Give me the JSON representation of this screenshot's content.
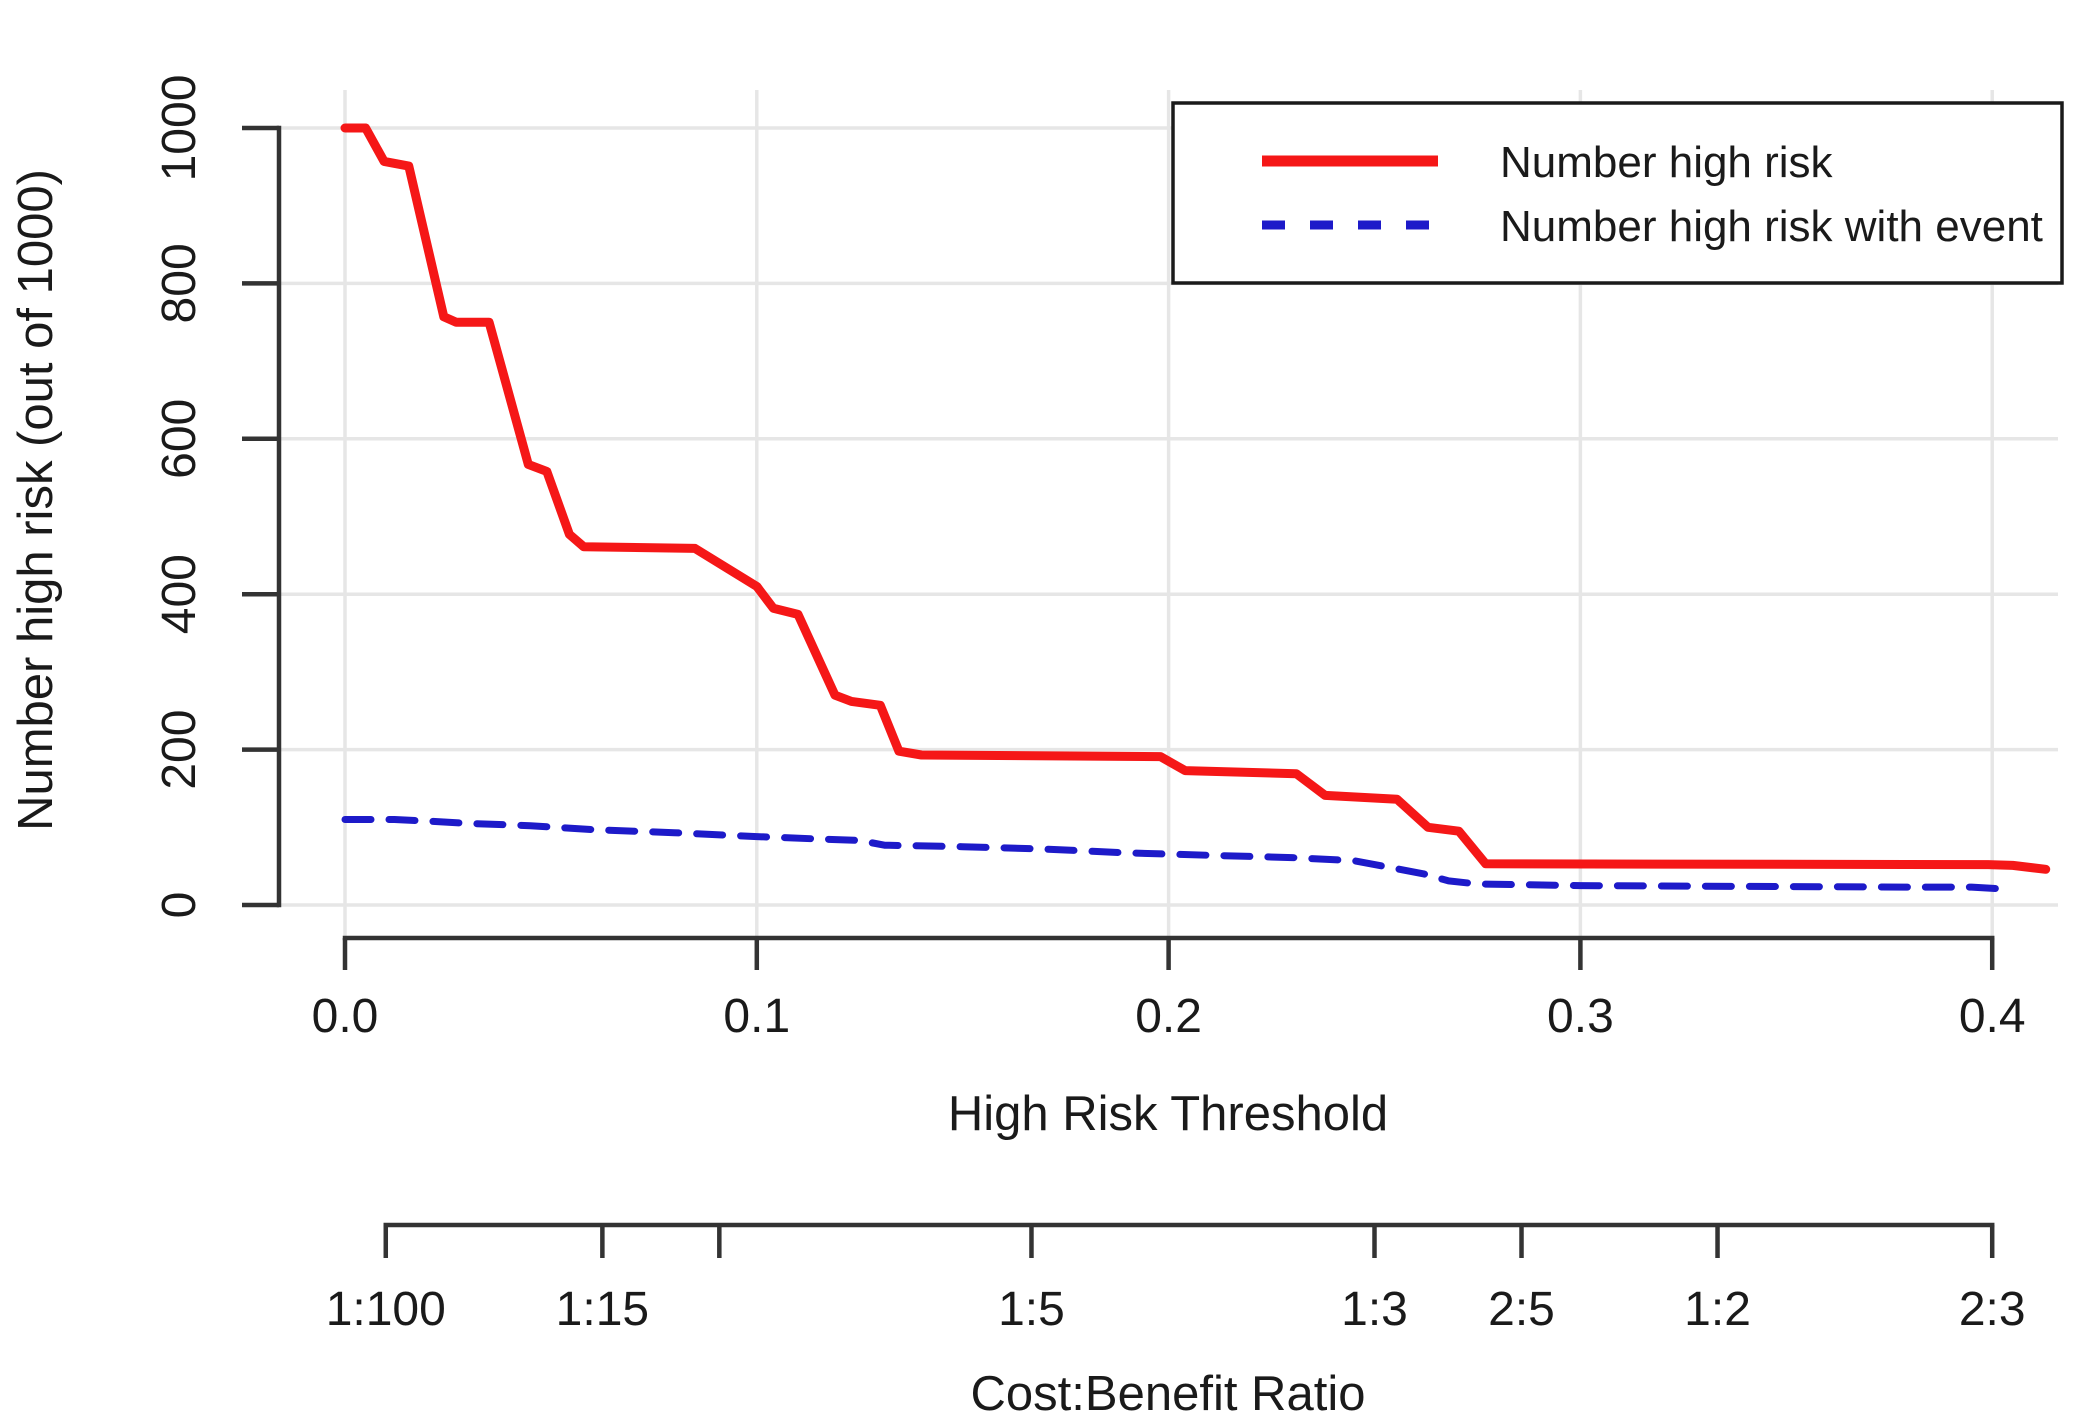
{
  "figure": {
    "background": "#ffffff",
    "text_color": "#1a1a1a",
    "axis_color": "#333333",
    "grid_color": "#e6e6e6",
    "legend_border_color": "#1a1a1a"
  },
  "chart_data": {
    "type": "line",
    "title": "",
    "xlabel": "High Risk Threshold",
    "ylabel": "Number high risk (out of 1000)",
    "x_ticks": [
      0.0,
      0.1,
      0.2,
      0.3,
      0.4
    ],
    "x_tick_labels": [
      "0.0",
      "0.1",
      "0.2",
      "0.3",
      "0.4"
    ],
    "y_ticks": [
      0,
      200,
      400,
      600,
      800,
      1000
    ],
    "y_tick_labels": [
      "0",
      "200",
      "400",
      "600",
      "800",
      "1000"
    ],
    "xlim": [
      0,
      0.4
    ],
    "ylim": [
      0,
      1000
    ],
    "grid": true,
    "legend_position": "top-right",
    "secondary_x_axis": {
      "label": "Cost:Benefit Ratio",
      "ticks": [
        {
          "label": "1:100",
          "threshold": 0.0099
        },
        {
          "label": "1:15",
          "threshold": 0.0625
        },
        {
          "label": "",
          "threshold": 0.0909
        },
        {
          "label": "1:5",
          "threshold": 0.1667
        },
        {
          "label": "1:3",
          "threshold": 0.25
        },
        {
          "label": "2:5",
          "threshold": 0.2857
        },
        {
          "label": "1:2",
          "threshold": 0.3333
        },
        {
          "label": "2:3",
          "threshold": 0.4
        }
      ]
    },
    "series": [
      {
        "name": "Number high risk",
        "color": "#f51717",
        "line_style": "solid",
        "line_width": 9,
        "points": [
          [
            0.0,
            1000
          ],
          [
            0.005,
            1000
          ],
          [
            0.0095,
            957
          ],
          [
            0.0155,
            951
          ],
          [
            0.024,
            757
          ],
          [
            0.027,
            750
          ],
          [
            0.035,
            750
          ],
          [
            0.0445,
            567
          ],
          [
            0.049,
            558
          ],
          [
            0.0545,
            477
          ],
          [
            0.058,
            461
          ],
          [
            0.085,
            459
          ],
          [
            0.1,
            410
          ],
          [
            0.104,
            382
          ],
          [
            0.11,
            374
          ],
          [
            0.119,
            270
          ],
          [
            0.123,
            262
          ],
          [
            0.13,
            257
          ],
          [
            0.1345,
            198
          ],
          [
            0.14,
            193
          ],
          [
            0.198,
            191
          ],
          [
            0.204,
            173
          ],
          [
            0.231,
            169
          ],
          [
            0.238,
            141
          ],
          [
            0.2555,
            136
          ],
          [
            0.263,
            100
          ],
          [
            0.2705,
            95
          ],
          [
            0.277,
            53
          ],
          [
            0.399,
            52
          ],
          [
            0.405,
            51
          ],
          [
            0.413,
            46
          ]
        ]
      },
      {
        "name": "Number high risk with event",
        "color": "#1d1ac9",
        "line_style": "dashed",
        "line_width": 7,
        "points": [
          [
            0.0,
            110
          ],
          [
            0.012,
            110
          ],
          [
            0.02,
            108
          ],
          [
            0.03,
            105
          ],
          [
            0.045,
            102
          ],
          [
            0.06,
            97
          ],
          [
            0.08,
            93
          ],
          [
            0.1,
            88
          ],
          [
            0.115,
            85
          ],
          [
            0.125,
            83
          ],
          [
            0.131,
            77
          ],
          [
            0.15,
            75
          ],
          [
            0.17,
            72
          ],
          [
            0.19,
            67
          ],
          [
            0.21,
            64
          ],
          [
            0.23,
            61
          ],
          [
            0.245,
            57
          ],
          [
            0.252,
            50
          ],
          [
            0.262,
            40
          ],
          [
            0.268,
            31
          ],
          [
            0.275,
            27
          ],
          [
            0.3,
            25
          ],
          [
            0.34,
            24
          ],
          [
            0.38,
            23
          ],
          [
            0.395,
            23
          ],
          [
            0.405,
            20
          ]
        ]
      }
    ]
  },
  "legend": {
    "items": [
      {
        "label": "Number high risk",
        "swatch": "red-solid-line"
      },
      {
        "label": "Number high risk with event",
        "swatch": "blue-dashed-line"
      }
    ]
  }
}
